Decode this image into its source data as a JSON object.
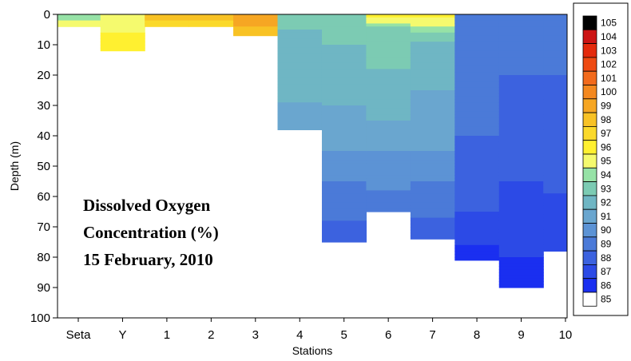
{
  "chart_data": {
    "type": "heatmap",
    "title": "",
    "xlabel": "Stations",
    "ylabel": "Depth (m)",
    "annotation": [
      "Dissolved Oxygen",
      "Concentration (%)",
      "15 February, 2010"
    ],
    "categories": [
      "Seta",
      "Y",
      "1",
      "2",
      "3",
      "4",
      "5",
      "6",
      "7",
      "8",
      "9",
      "10"
    ],
    "ylim": [
      0,
      100
    ],
    "yticks": [
      0,
      10,
      20,
      30,
      40,
      50,
      60,
      70,
      80,
      90,
      100
    ],
    "colorbar": {
      "levels": [
        105,
        104,
        103,
        102,
        101,
        100,
        99,
        98,
        97,
        96,
        95,
        94,
        93,
        92,
        91,
        90,
        89,
        88,
        87,
        86,
        85
      ],
      "colors": [
        "#000000",
        "#cc1414",
        "#e42a0c",
        "#ee4a12",
        "#f26a1c",
        "#f4881f",
        "#f6a623",
        "#f8c225",
        "#fbd92b",
        "#fff030",
        "#f5fa6e",
        "#96e2a6",
        "#7ccbb3",
        "#6fb6c4",
        "#6aa6cf",
        "#5c93d5",
        "#4b7ad8",
        "#3c62df",
        "#2c4ae6",
        "#1a2ff0",
        "#ffffff"
      ]
    },
    "profiles": [
      {
        "station": "Seta",
        "max_depth": 4,
        "do": [
          [
            0,
            94
          ],
          [
            4,
            95
          ]
        ]
      },
      {
        "station": "Y",
        "max_depth": 12,
        "do": [
          [
            0,
            95
          ],
          [
            12,
            96
          ]
        ]
      },
      {
        "station": "1",
        "max_depth": 4,
        "do": [
          [
            0,
            98
          ],
          [
            4,
            97
          ]
        ]
      },
      {
        "station": "2",
        "max_depth": 4,
        "do": [
          [
            0,
            98
          ],
          [
            4,
            97
          ]
        ]
      },
      {
        "station": "3",
        "max_depth": 7,
        "do": [
          [
            0,
            99
          ],
          [
            7,
            98
          ]
        ]
      },
      {
        "station": "4",
        "max_depth": 38,
        "do": [
          [
            0,
            93
          ],
          [
            10,
            92
          ],
          [
            20,
            92
          ],
          [
            38,
            91
          ]
        ]
      },
      {
        "station": "5",
        "max_depth": 75,
        "do": [
          [
            0,
            93
          ],
          [
            20,
            92
          ],
          [
            40,
            91
          ],
          [
            60,
            89
          ],
          [
            75,
            88
          ]
        ]
      },
      {
        "station": "6",
        "max_depth": 65,
        "do": [
          [
            0,
            96
          ],
          [
            5,
            93
          ],
          [
            30,
            92
          ],
          [
            50,
            90
          ],
          [
            65,
            89
          ]
        ]
      },
      {
        "station": "7",
        "max_depth": 74,
        "do": [
          [
            0,
            96
          ],
          [
            10,
            92
          ],
          [
            40,
            91
          ],
          [
            60,
            89
          ],
          [
            74,
            88
          ]
        ]
      },
      {
        "station": "8",
        "max_depth": 81,
        "do": [
          [
            0,
            89
          ],
          [
            20,
            89
          ],
          [
            60,
            88
          ],
          [
            81,
            86
          ]
        ]
      },
      {
        "station": "9",
        "max_depth": 90,
        "do": [
          [
            0,
            89
          ],
          [
            40,
            88
          ],
          [
            70,
            87
          ],
          [
            90,
            86
          ]
        ]
      },
      {
        "station": "10",
        "max_depth": 78,
        "do": [
          [
            0,
            89
          ],
          [
            40,
            88
          ],
          [
            78,
            87
          ]
        ]
      }
    ]
  }
}
